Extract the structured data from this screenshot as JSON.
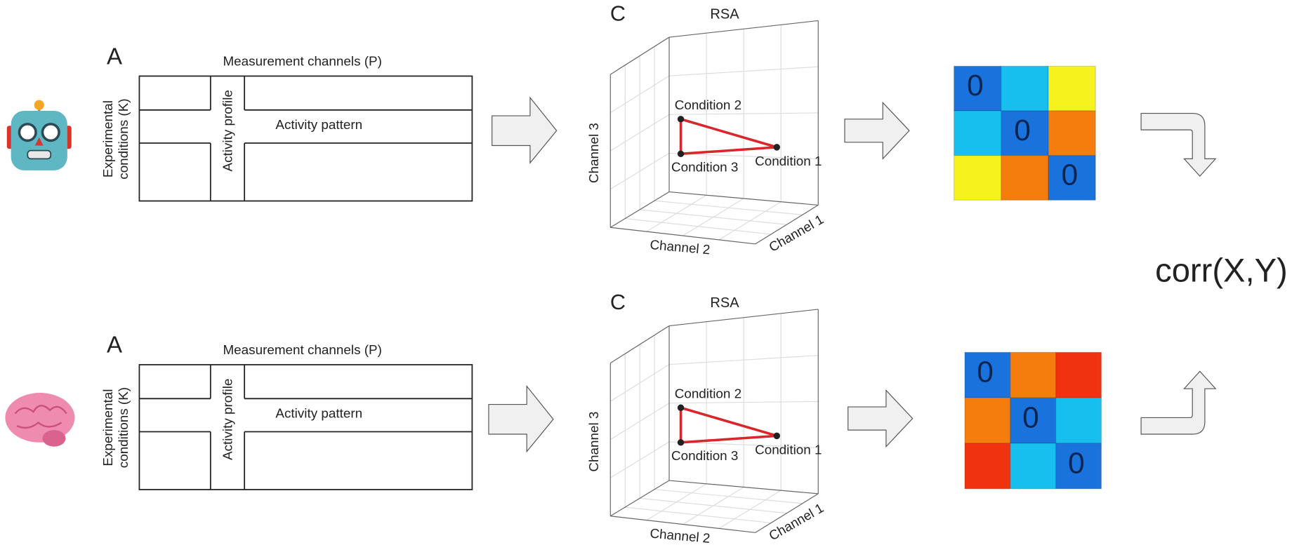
{
  "rows": [
    {
      "panel_label": "A",
      "channels_label": "Measurement channels (P)",
      "conditions_label": [
        "Experimental",
        "conditions (K)"
      ],
      "profile_label": "Activity profile",
      "pattern_label": "Activity pattern",
      "rsa": {
        "panel_label": "C",
        "title": "RSA",
        "axes": [
          "Channel 1",
          "Channel 2",
          "Channel 3"
        ],
        "points": [
          "Condition 1",
          "Condition 2",
          "Condition 3"
        ]
      },
      "matrix": {
        "cells": [
          [
            {
              "color": "#1a72dc",
              "label": "0"
            },
            {
              "color": "#17bfee"
            },
            {
              "color": "#f6f21e"
            }
          ],
          [
            {
              "color": "#17bfee"
            },
            {
              "color": "#1a72dc",
              "label": "0"
            },
            {
              "color": "#f47d0d"
            }
          ],
          [
            {
              "color": "#f6f21e"
            },
            {
              "color": "#f47d0d"
            },
            {
              "color": "#1a72dc",
              "label": "0"
            }
          ]
        ]
      }
    },
    {
      "panel_label": "A",
      "channels_label": "Measurement channels (P)",
      "conditions_label": [
        "Experimental",
        "conditions (K)"
      ],
      "profile_label": "Activity profile",
      "pattern_label": "Activity pattern",
      "rsa": {
        "panel_label": "C",
        "title": "RSA",
        "axes": [
          "Channel 1",
          "Channel 2",
          "Channel 3"
        ],
        "points": [
          "Condition 1",
          "Condition 2",
          "Condition 3"
        ]
      },
      "matrix": {
        "cells": [
          [
            {
              "color": "#1a72dc",
              "label": "0"
            },
            {
              "color": "#f47d0d"
            },
            {
              "color": "#f0320e"
            }
          ],
          [
            {
              "color": "#f47d0d"
            },
            {
              "color": "#1a72dc",
              "label": "0"
            },
            {
              "color": "#17bfee"
            }
          ],
          [
            {
              "color": "#f0320e"
            },
            {
              "color": "#17bfee"
            },
            {
              "color": "#1a72dc",
              "label": "0"
            }
          ]
        ]
      }
    }
  ],
  "result": "corr(X,Y)"
}
